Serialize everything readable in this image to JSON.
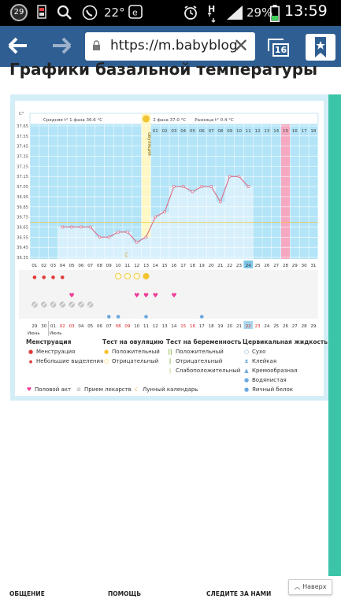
{
  "status_bar": {
    "notif_badge": "29",
    "temperature": "22°",
    "signal_label": "H",
    "battery": "29%",
    "time": "13:59"
  },
  "browser": {
    "url": "https://m.babyblog",
    "tab_count": "16"
  },
  "page": {
    "heading": "Графики базальной температуры"
  },
  "chart_data": {
    "type": "line",
    "unit_label": "C°",
    "phase1_label": "Средняя t° 1 фаза 36.6 °C",
    "phase2_label": "2 фаза 37.0 °C",
    "diff_label": "Разница t° 0.4 °C",
    "ovulation_label": "овуляция",
    "y_ticks": [
      "37.65",
      "37.55",
      "37.45",
      "37.35",
      "37.25",
      "37.15",
      "37.05",
      "36.95",
      "36.85",
      "36.75",
      "36.65",
      "36.55",
      "36.45",
      "36.35"
    ],
    "ylim": [
      36.35,
      37.65
    ],
    "day_headers": [
      "01",
      "02",
      "03",
      "04",
      "05",
      "06",
      "07",
      "08",
      "09",
      "10",
      "11",
      "12",
      "13",
      "14",
      "15",
      "16",
      "17",
      "18"
    ],
    "cycle_days": [
      "01",
      "02",
      "03",
      "04",
      "05",
      "06",
      "07",
      "08",
      "09",
      "10",
      "11",
      "12",
      "13",
      "14",
      "15",
      "16",
      "17",
      "18",
      "19",
      "20",
      "21",
      "22",
      "23",
      "24",
      "25",
      "26",
      "27",
      "28",
      "29",
      "30",
      "31"
    ],
    "temps": [
      null,
      null,
      null,
      36.65,
      36.65,
      36.65,
      36.65,
      36.55,
      36.55,
      36.6,
      36.6,
      36.5,
      36.55,
      36.75,
      36.8,
      37.05,
      37.05,
      37.0,
      37.05,
      37.05,
      36.9,
      37.15,
      37.15,
      37.05
    ],
    "ovulation_day": 13,
    "today_day": 24,
    "highlight_day": 28,
    "calendar_dates": [
      "29",
      "30",
      "01",
      "02",
      "03",
      "04",
      "05",
      "06",
      "07",
      "08",
      "09",
      "10",
      "11",
      "12",
      "13",
      "14",
      "15",
      "16",
      "17",
      "18",
      "19",
      "20",
      "21",
      "22",
      "23",
      "24",
      "25",
      "26",
      "27",
      "28",
      "29"
    ],
    "month_labels": [
      "Июнь",
      "Июль"
    ],
    "weekend_indices": [
      3,
      4,
      9,
      10,
      16,
      17,
      23,
      24
    ],
    "menstruation_days": [
      1,
      2,
      3,
      4
    ],
    "ovulation_test_days": [
      10,
      11,
      12,
      13
    ],
    "positive_test_day": 13,
    "intercourse_days": [
      5,
      12,
      13,
      14,
      16
    ],
    "medicine_days": [
      1,
      2,
      3,
      4,
      5,
      6,
      7
    ],
    "mucus_days": [
      9,
      10,
      13,
      19
    ],
    "moon_day": 11
  },
  "legend": {
    "menstruation": {
      "title": "Менструация",
      "items": [
        "Менструация",
        "Небольшие выделения"
      ]
    },
    "ovulation_test": {
      "title": "Тест на овуляцию",
      "items": [
        "Положительный",
        "Отрицательный"
      ]
    },
    "pregnancy_test": {
      "title": "Тест на беременность",
      "items": [
        "Положительный",
        "Отрицательный",
        "Слабоположительный"
      ]
    },
    "cervical": {
      "title": "Цервикальная жидкость",
      "items": [
        "Сухо",
        "Клейкая",
        "Кремообразная",
        "Водянистая",
        "Яичный белок"
      ]
    },
    "bottom": [
      "Половой акт",
      "Прием лекарств",
      "Лунный календарь"
    ]
  },
  "footer": {
    "col1": "ОБЩЕНИЕ",
    "col2": "ПОМОЩЬ",
    "col3": "СЛЕДИТЕ ЗА НАМИ",
    "back_to_top": "Наверх"
  },
  "colors": {
    "toolbar": "#2f5e92",
    "chart_blue": "#b3e4f8",
    "line": "#d9738b",
    "accent_green": "#3bc4a8"
  }
}
